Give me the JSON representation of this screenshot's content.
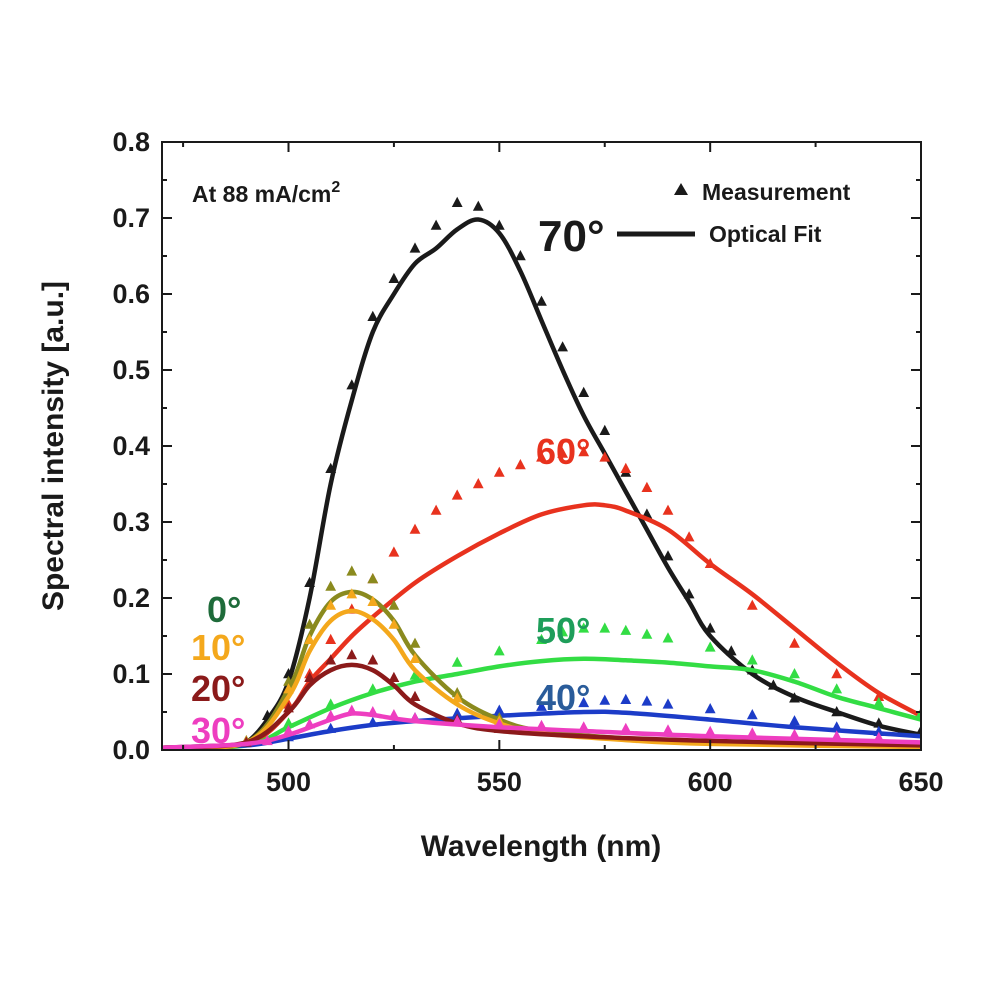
{
  "chart_data": {
    "type": "line",
    "xlabel": "Wavelength (nm)",
    "ylabel": "Spectral intensity [a.u.]",
    "xlim": [
      470,
      650
    ],
    "ylim": [
      0.0,
      0.8
    ],
    "xticks": [
      500,
      550,
      600,
      650
    ],
    "yticks": [
      "0.0",
      "0.1",
      "0.2",
      "0.3",
      "0.4",
      "0.5",
      "0.6",
      "0.7",
      "0.8"
    ],
    "grid": false,
    "annotation": {
      "text": "At 88 mA/cm",
      "superscript": "2"
    },
    "legend": {
      "position": "top-right",
      "entries": [
        {
          "label": "Measurement",
          "marker": "triangle"
        },
        {
          "label": "Optical Fit",
          "marker": "line"
        }
      ]
    },
    "series": [
      {
        "name": "0°",
        "color": "#8a8a1e",
        "label_color": "#1e6b3a",
        "fit": [
          [
            470,
            0.003
          ],
          [
            490,
            0.01
          ],
          [
            500,
            0.08
          ],
          [
            505,
            0.15
          ],
          [
            510,
            0.195
          ],
          [
            515,
            0.208
          ],
          [
            520,
            0.198
          ],
          [
            525,
            0.17
          ],
          [
            530,
            0.125
          ],
          [
            540,
            0.07
          ],
          [
            550,
            0.04
          ],
          [
            560,
            0.025
          ],
          [
            580,
            0.015
          ],
          [
            600,
            0.01
          ],
          [
            650,
            0.005
          ]
        ],
        "measurement": [
          [
            490,
            0.012
          ],
          [
            500,
            0.09
          ],
          [
            505,
            0.165
          ],
          [
            510,
            0.215
          ],
          [
            515,
            0.235
          ],
          [
            520,
            0.225
          ],
          [
            525,
            0.19
          ],
          [
            530,
            0.14
          ],
          [
            540,
            0.075
          ],
          [
            550,
            0.042
          ],
          [
            560,
            0.026
          ]
        ]
      },
      {
        "name": "10°",
        "color": "#f4a81c",
        "label_color": "#f4a81c",
        "fit": [
          [
            470,
            0.003
          ],
          [
            490,
            0.01
          ],
          [
            500,
            0.07
          ],
          [
            505,
            0.13
          ],
          [
            510,
            0.17
          ],
          [
            515,
            0.183
          ],
          [
            520,
            0.172
          ],
          [
            525,
            0.145
          ],
          [
            530,
            0.105
          ],
          [
            540,
            0.06
          ],
          [
            550,
            0.035
          ],
          [
            560,
            0.022
          ],
          [
            580,
            0.013
          ],
          [
            600,
            0.008
          ],
          [
            650,
            0.004
          ]
        ],
        "measurement": [
          [
            490,
            0.011
          ],
          [
            500,
            0.08
          ],
          [
            505,
            0.145
          ],
          [
            510,
            0.19
          ],
          [
            515,
            0.205
          ],
          [
            520,
            0.195
          ],
          [
            525,
            0.165
          ],
          [
            530,
            0.12
          ],
          [
            540,
            0.068
          ],
          [
            550,
            0.038
          ]
        ]
      },
      {
        "name": "20°",
        "color": "#8b1a1a",
        "label_color": "#8b1a1a",
        "fit": [
          [
            470,
            0.003
          ],
          [
            490,
            0.01
          ],
          [
            500,
            0.05
          ],
          [
            505,
            0.085
          ],
          [
            510,
            0.105
          ],
          [
            515,
            0.112
          ],
          [
            520,
            0.105
          ],
          [
            525,
            0.085
          ],
          [
            530,
            0.06
          ],
          [
            540,
            0.035
          ],
          [
            550,
            0.025
          ],
          [
            570,
            0.018
          ],
          [
            600,
            0.012
          ],
          [
            650,
            0.006
          ]
        ],
        "measurement": [
          [
            490,
            0.01
          ],
          [
            500,
            0.055
          ],
          [
            505,
            0.095
          ],
          [
            510,
            0.118
          ],
          [
            515,
            0.125
          ],
          [
            520,
            0.118
          ],
          [
            525,
            0.095
          ],
          [
            530,
            0.07
          ],
          [
            540,
            0.04
          ],
          [
            550,
            0.028
          ]
        ]
      },
      {
        "name": "30°",
        "color": "#ee3ec0",
        "label_color": "#ee3ec0",
        "fit": [
          [
            470,
            0.003
          ],
          [
            490,
            0.008
          ],
          [
            500,
            0.02
          ],
          [
            510,
            0.04
          ],
          [
            515,
            0.048
          ],
          [
            520,
            0.046
          ],
          [
            530,
            0.038
          ],
          [
            550,
            0.03
          ],
          [
            570,
            0.025
          ],
          [
            600,
            0.018
          ],
          [
            650,
            0.01
          ]
        ],
        "measurement": [
          [
            495,
            0.012
          ],
          [
            500,
            0.025
          ],
          [
            505,
            0.034
          ],
          [
            510,
            0.045
          ],
          [
            515,
            0.052
          ],
          [
            520,
            0.05
          ],
          [
            525,
            0.046
          ],
          [
            530,
            0.042
          ],
          [
            540,
            0.038
          ],
          [
            550,
            0.034
          ],
          [
            560,
            0.032
          ],
          [
            570,
            0.03
          ],
          [
            580,
            0.028
          ],
          [
            590,
            0.026
          ],
          [
            600,
            0.024
          ],
          [
            610,
            0.022
          ],
          [
            620,
            0.02
          ],
          [
            630,
            0.018
          ],
          [
            640,
            0.016
          ]
        ]
      },
      {
        "name": "40°",
        "color": "#1c3cc8",
        "label_color": "#2a5c9a",
        "fit": [
          [
            470,
            0.003
          ],
          [
            490,
            0.006
          ],
          [
            500,
            0.015
          ],
          [
            510,
            0.025
          ],
          [
            520,
            0.033
          ],
          [
            530,
            0.038
          ],
          [
            550,
            0.045
          ],
          [
            570,
            0.05
          ],
          [
            580,
            0.049
          ],
          [
            600,
            0.04
          ],
          [
            620,
            0.03
          ],
          [
            650,
            0.018
          ]
        ],
        "measurement": [
          [
            500,
            0.017
          ],
          [
            510,
            0.028
          ],
          [
            520,
            0.036
          ],
          [
            530,
            0.042
          ],
          [
            540,
            0.048
          ],
          [
            550,
            0.052
          ],
          [
            560,
            0.057
          ],
          [
            570,
            0.062
          ],
          [
            575,
            0.065
          ],
          [
            580,
            0.066
          ],
          [
            585,
            0.064
          ],
          [
            590,
            0.06
          ],
          [
            600,
            0.054
          ],
          [
            610,
            0.046
          ],
          [
            620,
            0.038
          ],
          [
            630,
            0.03
          ],
          [
            640,
            0.024
          ]
        ]
      },
      {
        "name": "50°",
        "color": "#33dd44",
        "label_color": "#1e9e5a",
        "fit": [
          [
            470,
            0.003
          ],
          [
            490,
            0.006
          ],
          [
            500,
            0.03
          ],
          [
            510,
            0.055
          ],
          [
            520,
            0.075
          ],
          [
            530,
            0.09
          ],
          [
            540,
            0.1
          ],
          [
            550,
            0.11
          ],
          [
            560,
            0.117
          ],
          [
            570,
            0.12
          ],
          [
            580,
            0.118
          ],
          [
            590,
            0.115
          ],
          [
            600,
            0.11
          ],
          [
            610,
            0.105
          ],
          [
            620,
            0.09
          ],
          [
            630,
            0.07
          ],
          [
            640,
            0.055
          ],
          [
            650,
            0.04
          ]
        ],
        "measurement": [
          [
            500,
            0.035
          ],
          [
            510,
            0.06
          ],
          [
            520,
            0.08
          ],
          [
            530,
            0.098
          ],
          [
            540,
            0.115
          ],
          [
            550,
            0.13
          ],
          [
            560,
            0.145
          ],
          [
            565,
            0.155
          ],
          [
            570,
            0.16
          ],
          [
            575,
            0.16
          ],
          [
            580,
            0.157
          ],
          [
            585,
            0.152
          ],
          [
            590,
            0.147
          ],
          [
            600,
            0.135
          ],
          [
            610,
            0.118
          ],
          [
            620,
            0.1
          ],
          [
            630,
            0.08
          ],
          [
            640,
            0.062
          ],
          [
            650,
            0.048
          ]
        ]
      },
      {
        "name": "60°",
        "color": "#e8321e",
        "label_color": "#e8321e",
        "fit": [
          [
            470,
            0.003
          ],
          [
            490,
            0.008
          ],
          [
            500,
            0.05
          ],
          [
            505,
            0.09
          ],
          [
            510,
            0.12
          ],
          [
            515,
            0.15
          ],
          [
            520,
            0.175
          ],
          [
            530,
            0.22
          ],
          [
            540,
            0.255
          ],
          [
            550,
            0.285
          ],
          [
            560,
            0.31
          ],
          [
            570,
            0.322
          ],
          [
            575,
            0.322
          ],
          [
            580,
            0.315
          ],
          [
            590,
            0.29
          ],
          [
            600,
            0.245
          ],
          [
            610,
            0.205
          ],
          [
            620,
            0.16
          ],
          [
            630,
            0.115
          ],
          [
            640,
            0.075
          ],
          [
            650,
            0.045
          ]
        ],
        "measurement": [
          [
            500,
            0.06
          ],
          [
            505,
            0.1
          ],
          [
            510,
            0.145
          ],
          [
            515,
            0.185
          ],
          [
            520,
            0.225
          ],
          [
            525,
            0.26
          ],
          [
            530,
            0.29
          ],
          [
            535,
            0.315
          ],
          [
            540,
            0.335
          ],
          [
            545,
            0.35
          ],
          [
            550,
            0.365
          ],
          [
            555,
            0.375
          ],
          [
            560,
            0.385
          ],
          [
            565,
            0.39
          ],
          [
            570,
            0.392
          ],
          [
            575,
            0.385
          ],
          [
            580,
            0.37
          ],
          [
            585,
            0.345
          ],
          [
            590,
            0.315
          ],
          [
            595,
            0.28
          ],
          [
            600,
            0.245
          ],
          [
            610,
            0.19
          ],
          [
            620,
            0.14
          ],
          [
            630,
            0.1
          ],
          [
            640,
            0.07
          ],
          [
            650,
            0.048
          ]
        ]
      },
      {
        "name": "70°",
        "color": "#1a1a1a",
        "label_color": "#1a1a1a",
        "fit": [
          [
            470,
            0.003
          ],
          [
            485,
            0.006
          ],
          [
            490,
            0.01
          ],
          [
            495,
            0.04
          ],
          [
            500,
            0.09
          ],
          [
            505,
            0.2
          ],
          [
            510,
            0.35
          ],
          [
            515,
            0.46
          ],
          [
            520,
            0.55
          ],
          [
            525,
            0.6
          ],
          [
            530,
            0.64
          ],
          [
            535,
            0.66
          ],
          [
            540,
            0.685
          ],
          [
            545,
            0.698
          ],
          [
            550,
            0.68
          ],
          [
            555,
            0.63
          ],
          [
            560,
            0.565
          ],
          [
            565,
            0.5
          ],
          [
            570,
            0.44
          ],
          [
            575,
            0.39
          ],
          [
            580,
            0.34
          ],
          [
            585,
            0.29
          ],
          [
            590,
            0.24
          ],
          [
            595,
            0.195
          ],
          [
            600,
            0.15
          ],
          [
            610,
            0.1
          ],
          [
            620,
            0.07
          ],
          [
            630,
            0.05
          ],
          [
            640,
            0.032
          ],
          [
            650,
            0.02
          ]
        ],
        "measurement": [
          [
            495,
            0.045
          ],
          [
            500,
            0.1
          ],
          [
            505,
            0.22
          ],
          [
            510,
            0.37
          ],
          [
            515,
            0.48
          ],
          [
            520,
            0.57
          ],
          [
            525,
            0.62
          ],
          [
            530,
            0.66
          ],
          [
            535,
            0.69
          ],
          [
            540,
            0.72
          ],
          [
            545,
            0.715
          ],
          [
            550,
            0.69
          ],
          [
            555,
            0.65
          ],
          [
            560,
            0.59
          ],
          [
            565,
            0.53
          ],
          [
            570,
            0.47
          ],
          [
            575,
            0.42
          ],
          [
            580,
            0.365
          ],
          [
            585,
            0.31
          ],
          [
            590,
            0.255
          ],
          [
            595,
            0.205
          ],
          [
            600,
            0.16
          ],
          [
            605,
            0.13
          ],
          [
            610,
            0.105
          ],
          [
            615,
            0.085
          ],
          [
            620,
            0.068
          ],
          [
            630,
            0.05
          ],
          [
            640,
            0.035
          ],
          [
            650,
            0.025
          ]
        ]
      }
    ]
  }
}
